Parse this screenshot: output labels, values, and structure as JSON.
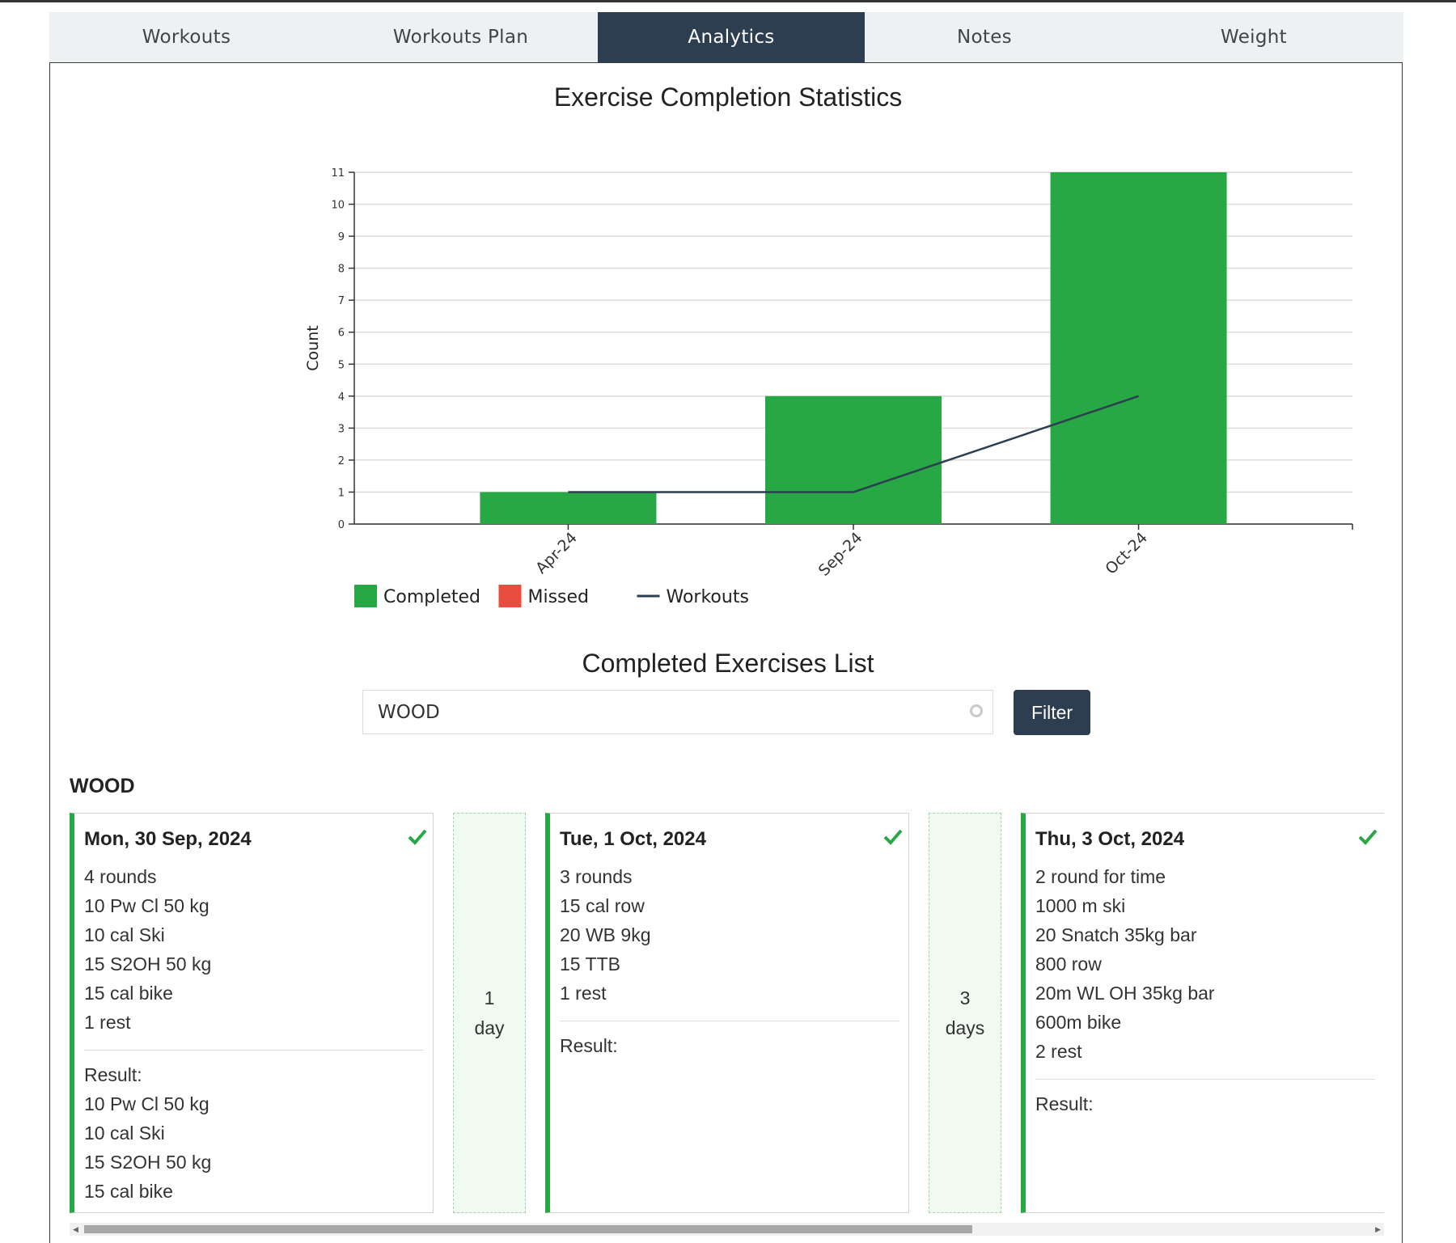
{
  "tabs": [
    {
      "label": "Workouts"
    },
    {
      "label": "Workouts Plan"
    },
    {
      "label": "Analytics",
      "active": true
    },
    {
      "label": "Notes"
    },
    {
      "label": "Weight"
    }
  ],
  "chart_title": "Exercise Completion Statistics",
  "chart_data": {
    "type": "bar",
    "title": "Exercise Completion Statistics",
    "categories": [
      "Apr-24",
      "Sep-24",
      "Oct-24"
    ],
    "series": [
      {
        "name": "Completed",
        "type": "bar",
        "color": "#28a745",
        "values": [
          1,
          4,
          11
        ]
      },
      {
        "name": "Missed",
        "type": "bar",
        "color": "#e74c3c",
        "values": [
          0,
          0,
          0
        ]
      },
      {
        "name": "Workouts",
        "type": "line",
        "color": "#2c3e50",
        "values": [
          1,
          1,
          4
        ]
      }
    ],
    "xlabel": "",
    "ylabel": "Count",
    "ylim": [
      0,
      11
    ],
    "yticks": [
      0,
      1,
      2,
      3,
      4,
      5,
      6,
      7,
      8,
      9,
      10,
      11
    ],
    "grid": true,
    "legend_position": "bottom-left"
  },
  "list_title": "Completed Exercises List",
  "filter": {
    "value": "WOOD",
    "button_label": "Filter"
  },
  "group": {
    "name": "WOOD",
    "cards": [
      {
        "date": "Mon, 30 Sep, 2024",
        "lines": [
          "4 rounds",
          "10 Pw Cl 50 kg",
          "10 cal Ski",
          "15 S2OH 50 kg",
          "15 cal bike",
          "1 rest"
        ],
        "result_label": "Result:",
        "result": [
          "10 Pw Cl 50 kg",
          "10 cal Ski",
          "15 S2OH 50 kg",
          "15 cal bike"
        ]
      },
      {
        "date": "Tue, 1 Oct, 2024",
        "lines": [
          "3 rounds",
          "15 cal row",
          "20 WB 9kg",
          "15 TTB",
          "1 rest"
        ],
        "result_label": "Result:",
        "result": []
      },
      {
        "date": "Thu, 3 Oct, 2024",
        "lines": [
          "2 round for time",
          "1000 m ski",
          "20 Snatch 35kg bar",
          "800 row",
          "20m WL OH 35kg bar",
          "600m bike",
          "2 rest"
        ],
        "result_label": "Result:",
        "result": []
      }
    ],
    "gaps": [
      {
        "number": "1",
        "unit": "day"
      },
      {
        "number": "3",
        "unit": "days"
      }
    ]
  }
}
